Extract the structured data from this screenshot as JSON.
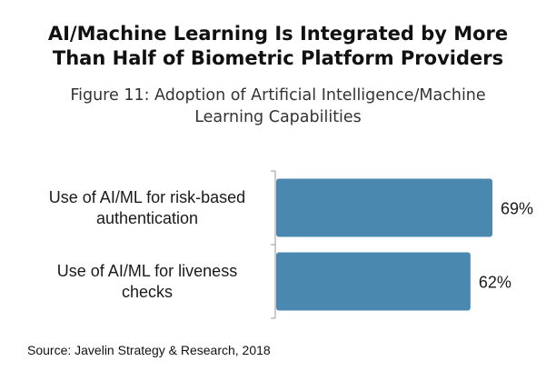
{
  "header": {
    "title_line1": "AI/Machine Learning Is Integrated by More",
    "title_line2": "Than Half of Biometric Platform Providers",
    "subtitle_line1": "Figure 11: Adoption of Artificial Intelligence/Machine",
    "subtitle_line2": "Learning Capabilities"
  },
  "footer": {
    "source": "Source: Javelin Strategy & Research, 2018"
  },
  "chart_data": {
    "type": "bar",
    "orientation": "horizontal",
    "categories": [
      [
        "Use of AI/ML for risk-based",
        "authentication"
      ],
      [
        "Use of AI/ML for liveness",
        "checks"
      ]
    ],
    "values": [
      69,
      62
    ],
    "value_labels": [
      "69%",
      "62%"
    ],
    "xlim": [
      0,
      100
    ],
    "bar_color": "#4a88b0",
    "grid": false,
    "legend": "none"
  }
}
